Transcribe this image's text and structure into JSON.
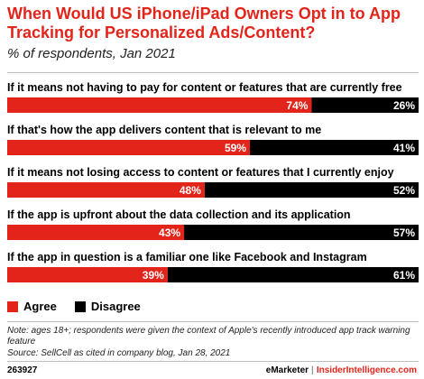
{
  "header": {
    "title": "When Would US iPhone/iPad Owners Opt in to App Tracking for Personalized Ads/Content?",
    "subtitle": "% of respondents, Jan 2021"
  },
  "chart_data": {
    "type": "bar",
    "orientation": "horizontal",
    "stacked": true,
    "categories": [
      "If it means not having to pay for content or features that are currently free",
      "If that's how the app delivers content that is relevant to me",
      "If it means not losing access to content or features that I currently enjoy",
      "If the app is upfront about the data collection and its application",
      "If the app in question is a familiar one like Facebook and Instagram"
    ],
    "series": [
      {
        "name": "Agree",
        "values": [
          74,
          59,
          48,
          43,
          39
        ],
        "color": "#e3241b"
      },
      {
        "name": "Disagree",
        "values": [
          26,
          41,
          52,
          57,
          61
        ],
        "color": "#000000"
      }
    ],
    "xlim": [
      0,
      100
    ],
    "value_suffix": "%",
    "legend_position": "bottom-left",
    "grid": false
  },
  "legend": {
    "agree_label": "Agree",
    "disagree_label": "Disagree"
  },
  "footer": {
    "note": "Note: ages 18+; respondents were given the context of Apple's recently introduced app track warning feature",
    "source": "Source: SellCell as cited in company blog, Jan 28, 2021",
    "chart_id": "263927",
    "brand_emarketer": "eMarketer",
    "brand_separator": "|",
    "brand_insider": "InsiderIntelligence.com"
  },
  "colors": {
    "accent": "#e3241b",
    "dark": "#000000"
  }
}
